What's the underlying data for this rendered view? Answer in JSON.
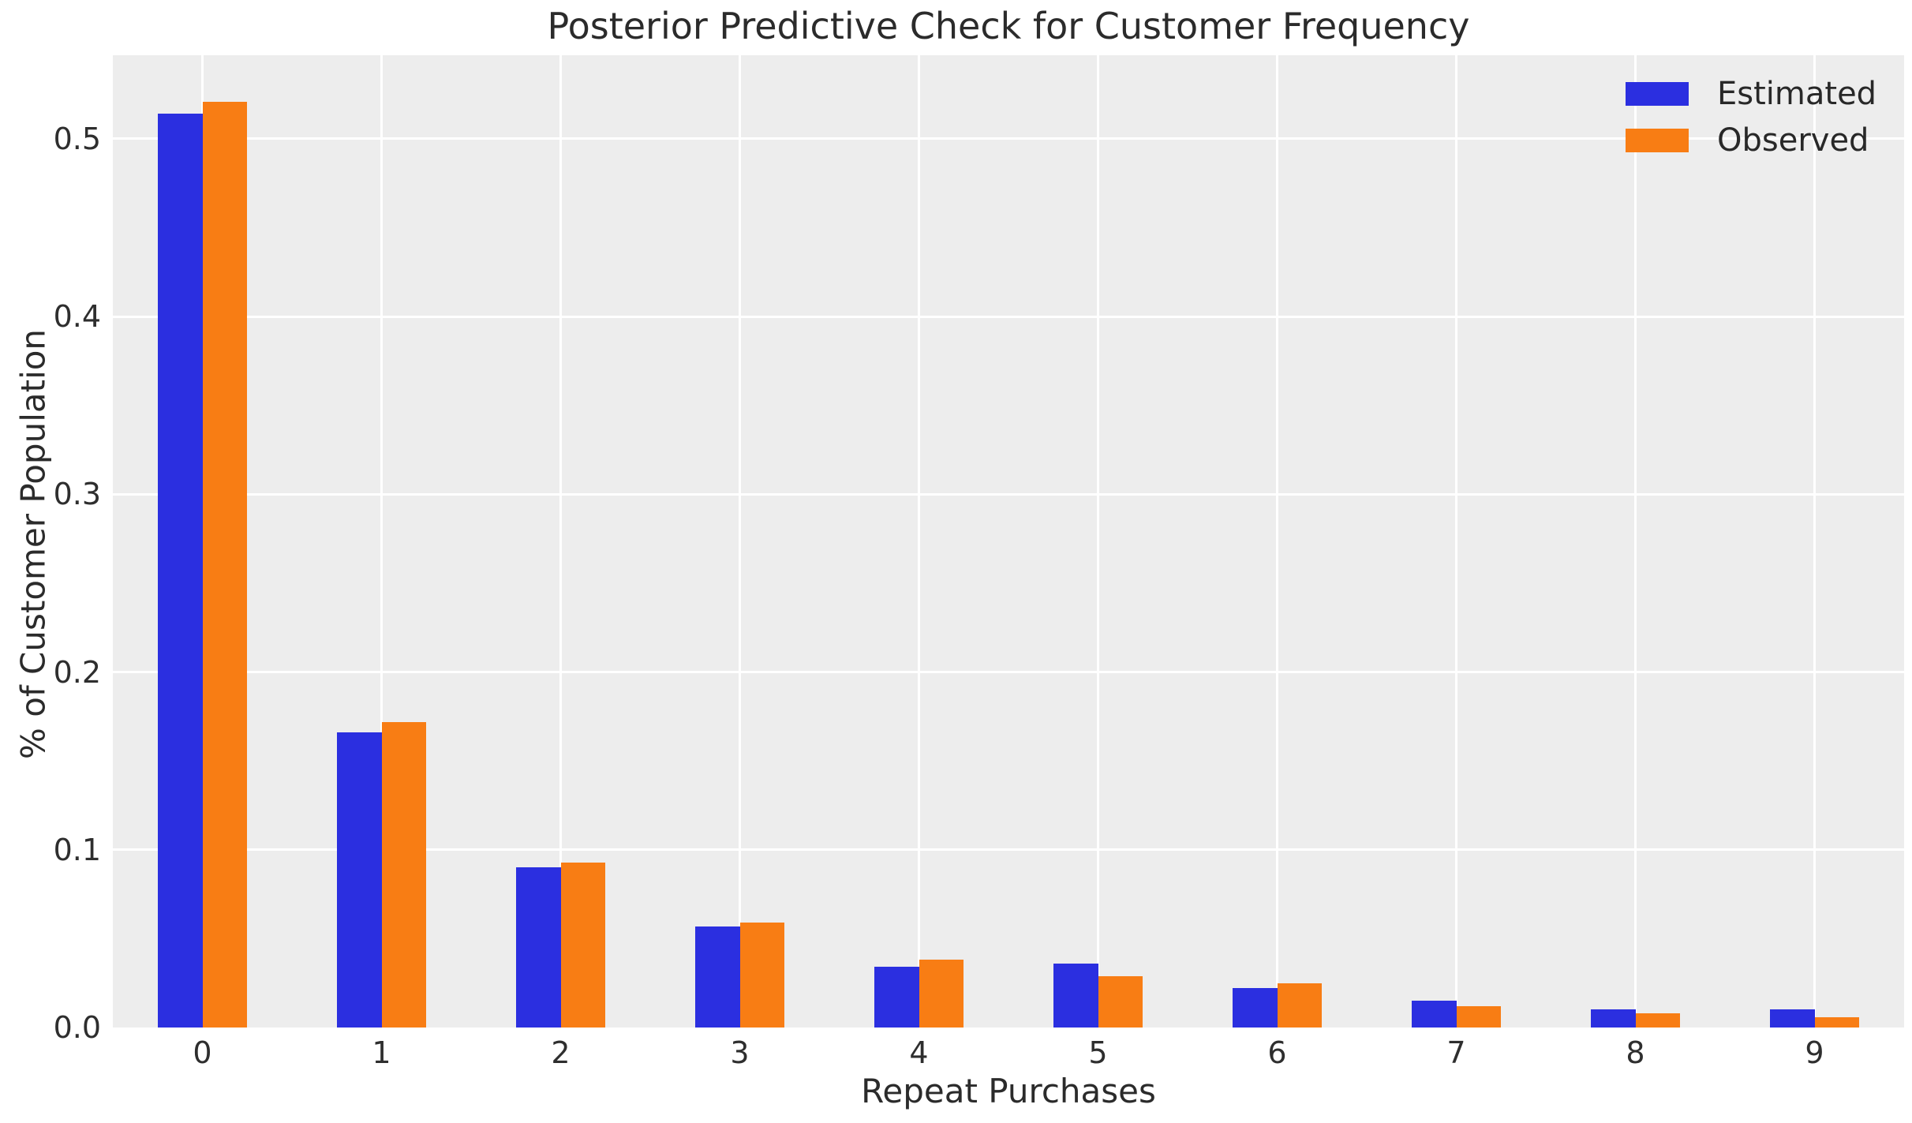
{
  "title": "Posterior Predictive Check for Customer Frequency",
  "colors": {
    "estimated": "#2b2fe0",
    "observed": "#f87d14",
    "plot_background": "#ededed",
    "gridline": "#ffffff",
    "text": "#2b2b2b"
  },
  "chart_data": {
    "type": "bar",
    "title": "Posterior Predictive Check for Customer Frequency",
    "xlabel": "Repeat Purchases",
    "ylabel": "% of Customer Population",
    "categories": [
      "0",
      "1",
      "2",
      "3",
      "4",
      "5",
      "6",
      "7",
      "8",
      "9"
    ],
    "series": [
      {
        "name": "Estimated",
        "color": "#2b2fe0",
        "values": [
          0.514,
          0.166,
          0.09,
          0.057,
          0.034,
          0.036,
          0.022,
          0.015,
          0.01,
          0.01
        ]
      },
      {
        "name": "Observed",
        "color": "#f87d14",
        "values": [
          0.521,
          0.172,
          0.093,
          0.059,
          0.038,
          0.029,
          0.025,
          0.012,
          0.008,
          0.006
        ]
      }
    ],
    "yticks": [
      0.0,
      0.1,
      0.2,
      0.3,
      0.4,
      0.5
    ],
    "yticklabels": [
      "0.0",
      "0.1",
      "0.2",
      "0.3",
      "0.4",
      "0.5"
    ],
    "ylim": [
      0,
      0.547
    ],
    "grid": true,
    "legend_position": "upper right",
    "bar_group_width_fraction": 0.5
  }
}
